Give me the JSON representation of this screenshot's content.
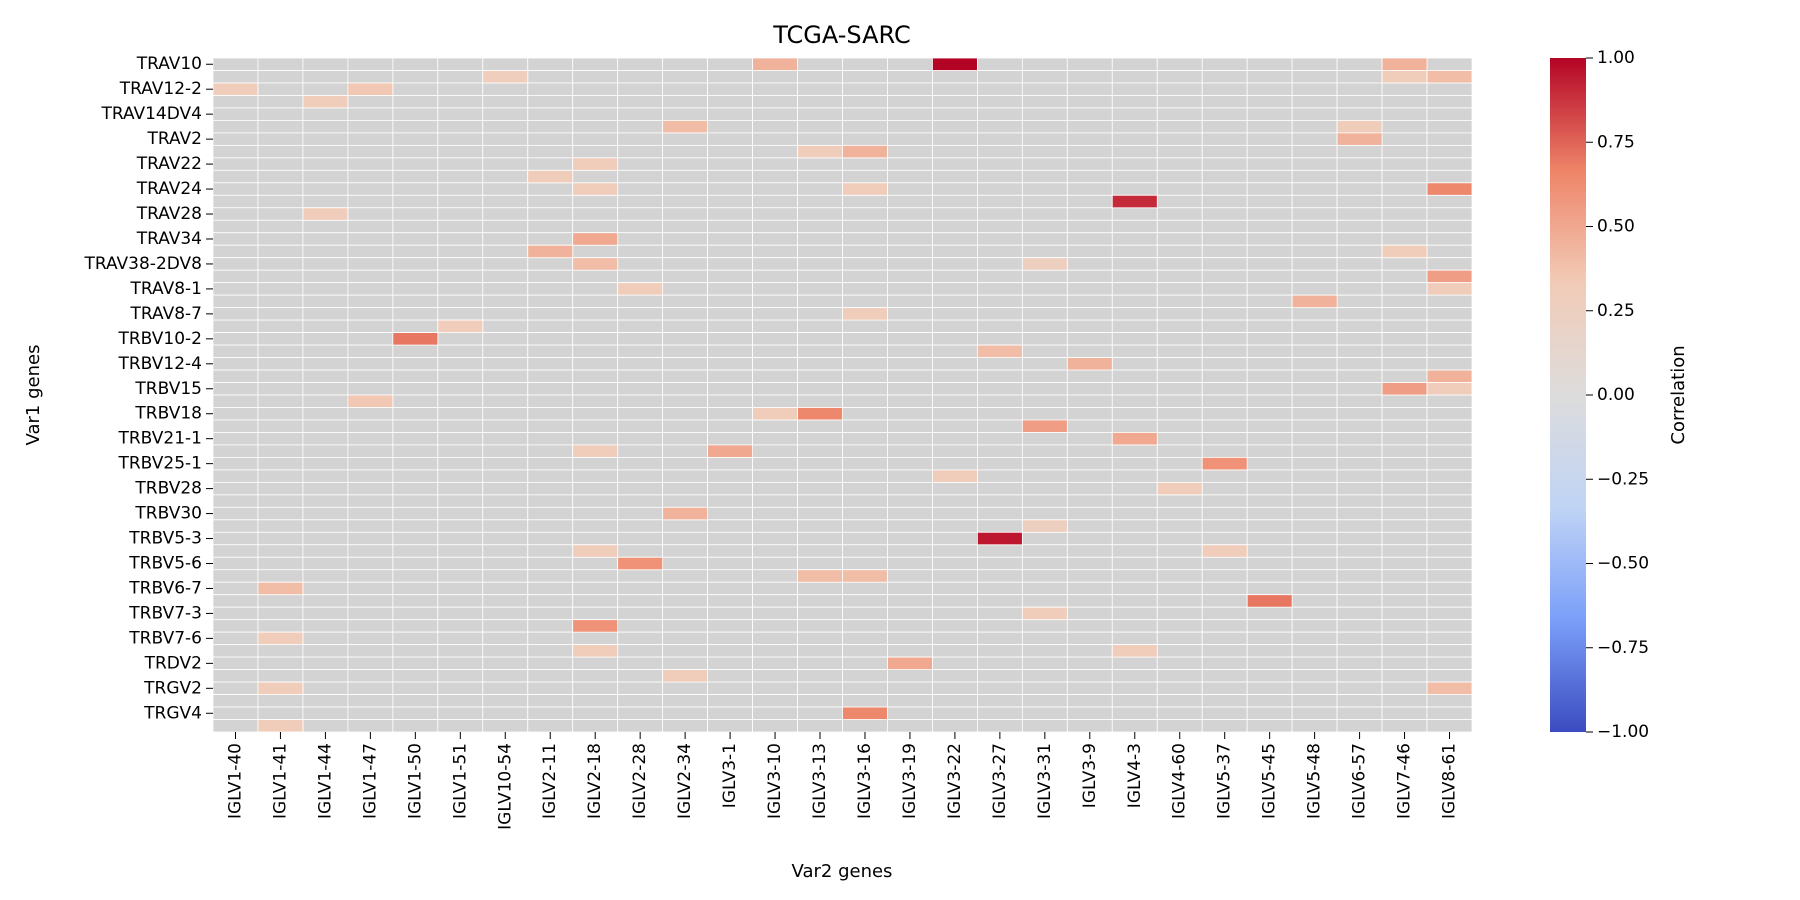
{
  "chart_data": {
    "type": "heatmap",
    "title": "TCGA-SARC",
    "xlabel": "Var2 genes",
    "ylabel": "Var1 genes",
    "x_categories": [
      "IGLV1-40",
      "IGLV1-41",
      "IGLV1-44",
      "IGLV1-47",
      "IGLV1-50",
      "IGLV1-51",
      "IGLV10-54",
      "IGLV2-11",
      "IGLV2-18",
      "IGLV2-28",
      "IGLV2-34",
      "IGLV3-1",
      "IGLV3-10",
      "IGLV3-13",
      "IGLV3-16",
      "IGLV3-19",
      "IGLV3-22",
      "IGLV3-27",
      "IGLV3-31",
      "IGLV3-9",
      "IGLV4-3",
      "IGLV4-60",
      "IGLV5-37",
      "IGLV5-45",
      "IGLV5-48",
      "IGLV6-57",
      "IGLV7-46",
      "IGLV8-61"
    ],
    "y_tick_labels": [
      "TRAV10",
      "TRAV12-2",
      "TRAV14DV4",
      "TRAV2",
      "TRAV22",
      "TRAV24",
      "TRAV28",
      "TRAV34",
      "TRAV38-2DV8",
      "TRAV8-1",
      "TRAV8-7",
      "TRBV10-2",
      "TRBV12-4",
      "TRBV15",
      "TRBV18",
      "TRBV21-1",
      "TRBV25-1",
      "TRBV28",
      "TRBV30",
      "TRBV5-3",
      "TRBV5-6",
      "TRBV6-7",
      "TRBV7-3",
      "TRBV7-6",
      "TRDV2",
      "TRGV2",
      "TRGV4"
    ],
    "n_rows": 54,
    "cells": [
      {
        "row": 0,
        "col": 12,
        "value": 0.45
      },
      {
        "row": 0,
        "col": 16,
        "value": 1.0
      },
      {
        "row": 0,
        "col": 26,
        "value": 0.45
      },
      {
        "row": 1,
        "col": 6,
        "value": 0.28
      },
      {
        "row": 1,
        "col": 26,
        "value": 0.3
      },
      {
        "row": 1,
        "col": 27,
        "value": 0.4
      },
      {
        "row": 2,
        "col": 0,
        "value": 0.3
      },
      {
        "row": 2,
        "col": 3,
        "value": 0.35
      },
      {
        "row": 3,
        "col": 2,
        "value": 0.3
      },
      {
        "row": 5,
        "col": 10,
        "value": 0.4
      },
      {
        "row": 5,
        "col": 25,
        "value": 0.3
      },
      {
        "row": 6,
        "col": 25,
        "value": 0.45
      },
      {
        "row": 7,
        "col": 13,
        "value": 0.3
      },
      {
        "row": 7,
        "col": 14,
        "value": 0.45
      },
      {
        "row": 8,
        "col": 8,
        "value": 0.3
      },
      {
        "row": 9,
        "col": 7,
        "value": 0.3
      },
      {
        "row": 10,
        "col": 8,
        "value": 0.3
      },
      {
        "row": 10,
        "col": 14,
        "value": 0.3
      },
      {
        "row": 10,
        "col": 27,
        "value": 0.65
      },
      {
        "row": 11,
        "col": 20,
        "value": 0.9
      },
      {
        "row": 12,
        "col": 2,
        "value": 0.3
      },
      {
        "row": 14,
        "col": 8,
        "value": 0.5
      },
      {
        "row": 15,
        "col": 7,
        "value": 0.45
      },
      {
        "row": 15,
        "col": 26,
        "value": 0.3
      },
      {
        "row": 16,
        "col": 8,
        "value": 0.4
      },
      {
        "row": 16,
        "col": 18,
        "value": 0.25
      },
      {
        "row": 17,
        "col": 27,
        "value": 0.55
      },
      {
        "row": 18,
        "col": 9,
        "value": 0.3
      },
      {
        "row": 18,
        "col": 27,
        "value": 0.3
      },
      {
        "row": 19,
        "col": 24,
        "value": 0.45
      },
      {
        "row": 20,
        "col": 14,
        "value": 0.3
      },
      {
        "row": 21,
        "col": 5,
        "value": 0.3
      },
      {
        "row": 22,
        "col": 4,
        "value": 0.7
      },
      {
        "row": 23,
        "col": 17,
        "value": 0.4
      },
      {
        "row": 24,
        "col": 19,
        "value": 0.45
      },
      {
        "row": 25,
        "col": 27,
        "value": 0.45
      },
      {
        "row": 26,
        "col": 26,
        "value": 0.55
      },
      {
        "row": 26,
        "col": 27,
        "value": 0.3
      },
      {
        "row": 27,
        "col": 3,
        "value": 0.35
      },
      {
        "row": 28,
        "col": 12,
        "value": 0.3
      },
      {
        "row": 28,
        "col": 13,
        "value": 0.65
      },
      {
        "row": 29,
        "col": 18,
        "value": 0.55
      },
      {
        "row": 30,
        "col": 20,
        "value": 0.5
      },
      {
        "row": 31,
        "col": 8,
        "value": 0.3
      },
      {
        "row": 31,
        "col": 11,
        "value": 0.5
      },
      {
        "row": 32,
        "col": 22,
        "value": 0.6
      },
      {
        "row": 33,
        "col": 16,
        "value": 0.3
      },
      {
        "row": 34,
        "col": 21,
        "value": 0.3
      },
      {
        "row": 36,
        "col": 10,
        "value": 0.45
      },
      {
        "row": 37,
        "col": 18,
        "value": 0.25
      },
      {
        "row": 38,
        "col": 17,
        "value": 0.95
      },
      {
        "row": 39,
        "col": 8,
        "value": 0.3
      },
      {
        "row": 39,
        "col": 22,
        "value": 0.3
      },
      {
        "row": 40,
        "col": 9,
        "value": 0.6
      },
      {
        "row": 41,
        "col": 13,
        "value": 0.4
      },
      {
        "row": 41,
        "col": 14,
        "value": 0.4
      },
      {
        "row": 42,
        "col": 1,
        "value": 0.4
      },
      {
        "row": 43,
        "col": 23,
        "value": 0.7
      },
      {
        "row": 44,
        "col": 18,
        "value": 0.3
      },
      {
        "row": 45,
        "col": 8,
        "value": 0.6
      },
      {
        "row": 46,
        "col": 1,
        "value": 0.3
      },
      {
        "row": 47,
        "col": 8,
        "value": 0.3
      },
      {
        "row": 47,
        "col": 20,
        "value": 0.3
      },
      {
        "row": 48,
        "col": 15,
        "value": 0.5
      },
      {
        "row": 49,
        "col": 10,
        "value": 0.3
      },
      {
        "row": 50,
        "col": 1,
        "value": 0.3
      },
      {
        "row": 50,
        "col": 27,
        "value": 0.4
      },
      {
        "row": 52,
        "col": 14,
        "value": 0.65
      },
      {
        "row": 53,
        "col": 1,
        "value": 0.3
      }
    ],
    "colorbar": {
      "label": "Correlation",
      "range": [
        -1.0,
        1.0
      ],
      "ticks": [
        "1.00",
        "0.75",
        "0.50",
        "0.25",
        "0.00",
        "−0.25",
        "−0.50",
        "−0.75",
        "−1.00"
      ],
      "tick_values": [
        1.0,
        0.75,
        0.5,
        0.25,
        0.0,
        -0.25,
        -0.5,
        -0.75,
        -1.0
      ],
      "colormap": "coolwarm",
      "colors": [
        "#3b4cc0",
        "#7b9ff9",
        "#c0d4f5",
        "#dddcdc",
        "#f2cbb7",
        "#ee8468",
        "#b40426"
      ]
    },
    "background_color": "#d3d3d3",
    "grid_color": "#ffffff"
  }
}
